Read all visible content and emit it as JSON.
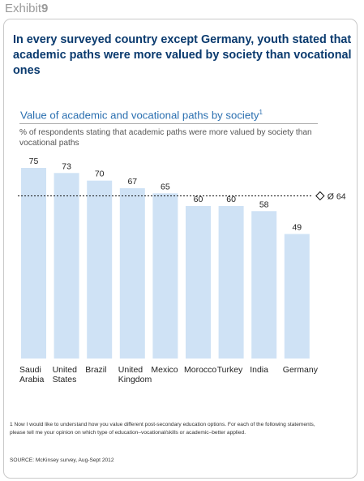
{
  "exhibit": {
    "word": "Exhibit",
    "number": "9"
  },
  "headline": "In every surveyed country except Germany, youth stated that academic paths were more valued by society than vocational ones",
  "chart_data": {
    "type": "bar",
    "title": "Value of academic and vocational paths by society",
    "title_footnote_marker": "1",
    "subtitle": "% of respondents stating that academic paths were more valued by society than vocational paths",
    "categories": [
      [
        "Saudi",
        "Arabia"
      ],
      [
        "United",
        "States"
      ],
      [
        "Brazil"
      ],
      [
        "United",
        "Kingdom"
      ],
      [
        "Mexico"
      ],
      [
        "Morocco"
      ],
      [
        "Turkey"
      ],
      [
        "India"
      ],
      [
        "Germany"
      ]
    ],
    "values": [
      75,
      73,
      70,
      67,
      65,
      60,
      60,
      58,
      49
    ],
    "reference_line": {
      "value": 64,
      "label": "Ø 64",
      "style": "dashed"
    },
    "ylim": [
      0,
      75
    ],
    "grid": false,
    "legend": "none",
    "colors": {
      "bar": "#cfe2f5",
      "text": "#222222",
      "reference": "#111111"
    }
  },
  "footnote": "1 Now I would like to understand how you value different post-secondary education options. For each of the following statements, please tell me your opinion on which type of education–vocational/skills or academic–better applied.",
  "source": "SOURCE: McKinsey survey, Aug-Sept 2012"
}
